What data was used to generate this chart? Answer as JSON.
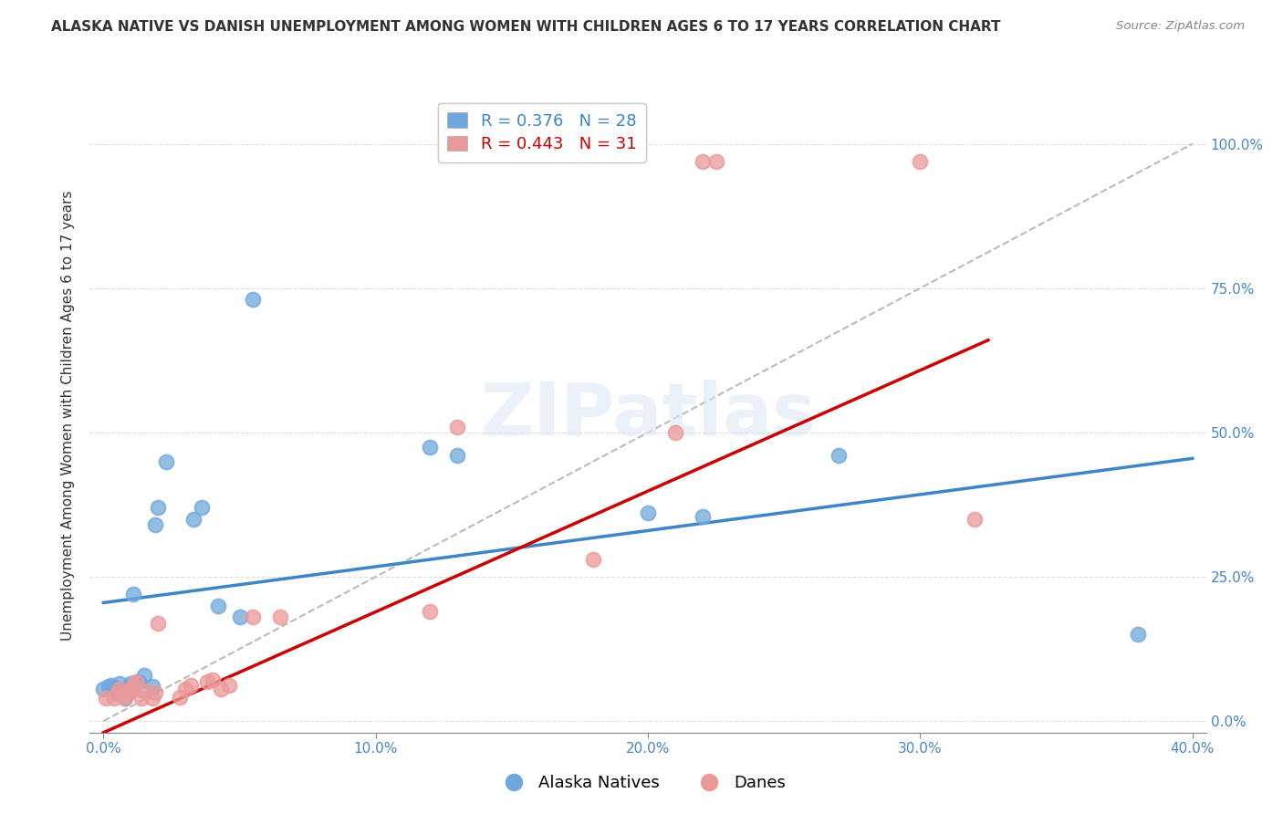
{
  "title": "ALASKA NATIVE VS DANISH UNEMPLOYMENT AMONG WOMEN WITH CHILDREN AGES 6 TO 17 YEARS CORRELATION CHART",
  "source": "Source: ZipAtlas.com",
  "xlabel_ticks": [
    "0.0%",
    "10.0%",
    "20.0%",
    "30.0%",
    "40.0%"
  ],
  "xlabel_vals": [
    0.0,
    0.1,
    0.2,
    0.3,
    0.4
  ],
  "ylabel_ticks": [
    "0.0%",
    "25.0%",
    "50.0%",
    "75.0%",
    "100.0%"
  ],
  "ylabel_vals": [
    0.0,
    0.25,
    0.5,
    0.75,
    1.0
  ],
  "xlim": [
    -0.005,
    0.405
  ],
  "ylim": [
    -0.02,
    1.08
  ],
  "alaska_color": "#6fa8dc",
  "danish_color": "#ea9999",
  "alaska_R": 0.376,
  "alaska_N": 28,
  "danish_R": 0.443,
  "danish_N": 31,
  "alaska_points_x": [
    0.0,
    0.002,
    0.003,
    0.004,
    0.005,
    0.006,
    0.008,
    0.009,
    0.01,
    0.01,
    0.011,
    0.013,
    0.015,
    0.018,
    0.019,
    0.02,
    0.023,
    0.033,
    0.036,
    0.042,
    0.05,
    0.055,
    0.12,
    0.13,
    0.2,
    0.22,
    0.27,
    0.38
  ],
  "alaska_points_y": [
    0.055,
    0.06,
    0.062,
    0.058,
    0.05,
    0.065,
    0.04,
    0.055,
    0.06,
    0.065,
    0.22,
    0.068,
    0.08,
    0.06,
    0.34,
    0.37,
    0.45,
    0.35,
    0.37,
    0.2,
    0.18,
    0.73,
    0.475,
    0.46,
    0.36,
    0.355,
    0.46,
    0.15
  ],
  "danish_points_x": [
    0.001,
    0.004,
    0.005,
    0.006,
    0.008,
    0.009,
    0.01,
    0.011,
    0.012,
    0.014,
    0.015,
    0.018,
    0.019,
    0.02,
    0.028,
    0.03,
    0.032,
    0.038,
    0.04,
    0.043,
    0.046,
    0.055,
    0.065,
    0.12,
    0.13,
    0.18,
    0.21,
    0.22,
    0.225,
    0.3,
    0.32
  ],
  "danish_points_y": [
    0.04,
    0.04,
    0.048,
    0.055,
    0.04,
    0.05,
    0.052,
    0.062,
    0.068,
    0.04,
    0.052,
    0.04,
    0.05,
    0.17,
    0.042,
    0.055,
    0.062,
    0.068,
    0.072,
    0.055,
    0.062,
    0.18,
    0.18,
    0.19,
    0.51,
    0.28,
    0.5,
    0.97,
    0.97,
    0.97,
    0.35
  ],
  "alaska_line": [
    0.0,
    0.4,
    0.205,
    0.455
  ],
  "danish_line": [
    0.0,
    0.325,
    -0.02,
    0.66
  ],
  "diag_line": [
    0.0,
    0.4,
    0.0,
    1.0
  ],
  "alaska_line_color": "#3d85c8",
  "danish_line_color": "#cc0000",
  "diag_line_color": "#bbbbbb",
  "watermark": "ZIPatlas",
  "ylabel": "Unemployment Among Women with Children Ages 6 to 17 years",
  "grid_color": "#dddddd",
  "tick_color": "#4a86c8",
  "title_fontsize": 11,
  "axis_label_fontsize": 11,
  "tick_fontsize": 11
}
